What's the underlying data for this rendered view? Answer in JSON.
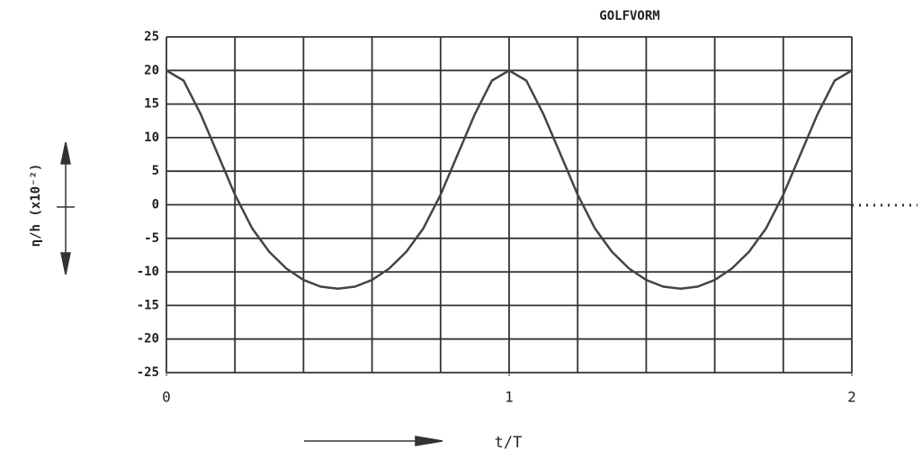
{
  "chart_data": {
    "type": "line",
    "title": "GOLFVORM",
    "xlabel": "t/T",
    "ylabel": "η/h (x10⁻²)",
    "x": [
      0,
      0.05,
      0.1,
      0.15,
      0.2,
      0.25,
      0.3,
      0.35,
      0.4,
      0.45,
      0.5,
      0.55,
      0.6,
      0.65,
      0.7,
      0.75,
      0.8,
      0.85,
      0.9,
      0.95,
      1,
      1.05,
      1.1,
      1.15,
      1.2,
      1.25,
      1.3,
      1.35,
      1.4,
      1.45,
      1.5,
      1.55,
      1.6,
      1.65,
      1.7,
      1.75,
      1.8,
      1.85,
      1.9,
      1.95,
      2
    ],
    "series": [
      {
        "color": "#444",
        "values": [
          20,
          18.5,
          13.5,
          7.5,
          1.5,
          -3.5,
          -7,
          -9.5,
          -11.2,
          -12.2,
          -12.5,
          -12.2,
          -11.2,
          -9.5,
          -7,
          -3.5,
          1.5,
          7.5,
          13.5,
          18.5,
          20,
          18.5,
          13.5,
          7.5,
          1.5,
          -3.5,
          -7,
          -9.5,
          -11.2,
          -12.2,
          -12.5,
          -12.2,
          -11.2,
          -9.5,
          -7,
          -3.5,
          1.5,
          7.5,
          13.5,
          18.5,
          20
        ]
      }
    ],
    "xlim": [
      0,
      2
    ],
    "xticks": [
      0,
      1,
      2
    ],
    "xgrid": [
      0,
      0.2,
      0.4,
      0.6,
      0.8,
      1,
      1.2,
      1.4,
      1.6,
      1.8,
      2
    ],
    "ylim": [
      -25,
      25
    ],
    "yticks": [
      -25,
      -20,
      -15,
      -10,
      -5,
      0,
      5,
      10,
      15,
      20,
      25
    ],
    "grid": true
  }
}
